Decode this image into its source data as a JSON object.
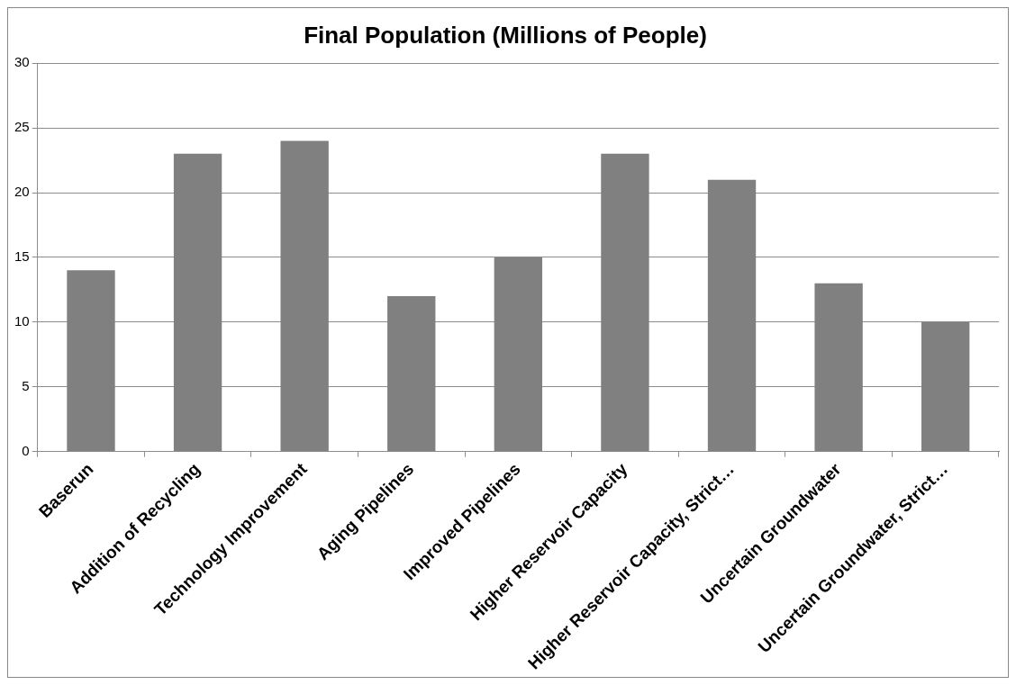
{
  "chart_data": {
    "type": "bar",
    "title": "Final Population (Millions of People)",
    "categories": [
      "Baserun",
      "Addition of Recycling",
      "Technology Improvement",
      "Aging Pipelines",
      "Improved Pipelines",
      "Higher Reservoir Capacity",
      "Higher Reservoir Capacity, Strict…",
      "Uncertain Groundwater",
      "Uncertain Groundwater, Strict…"
    ],
    "values": [
      14,
      23,
      24,
      12,
      15,
      23,
      21,
      13,
      10
    ],
    "color": "#808080",
    "ylim": [
      0,
      30
    ],
    "yticks": [
      0,
      5,
      10,
      15,
      20,
      25,
      30
    ],
    "grid": "y",
    "legend": false
  }
}
